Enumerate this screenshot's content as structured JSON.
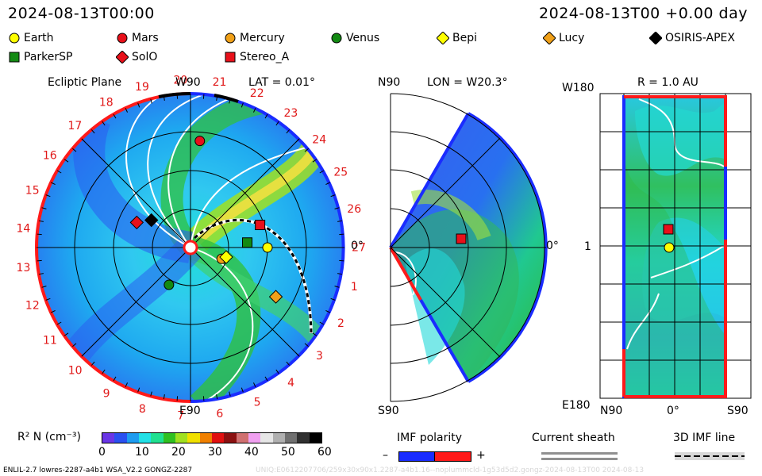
{
  "header": {
    "left_time": "2024-08-13T00:00",
    "right_time": "2024-08-13T00 +0.00 day"
  },
  "legend": [
    {
      "label": "Earth",
      "shape": "circle",
      "color": "#ffff00"
    },
    {
      "label": "Mars",
      "shape": "circle",
      "color": "#e8101a"
    },
    {
      "label": "Mercury",
      "shape": "circle",
      "color": "#f0a018"
    },
    {
      "label": "Venus",
      "shape": "circle",
      "color": "#138a13"
    },
    {
      "label": "Bepi",
      "shape": "diamond",
      "color": "#ffff00"
    },
    {
      "label": "Lucy",
      "shape": "diamond",
      "color": "#f0a018"
    },
    {
      "label": "OSIRIS-APEX",
      "shape": "diamond",
      "color": "#000000"
    },
    {
      "label": "ParkerSP",
      "shape": "square",
      "color": "#138a13"
    },
    {
      "label": "SolO",
      "shape": "diamond",
      "color": "#e8101a"
    },
    {
      "label": "Stereo_A",
      "shape": "square",
      "color": "#e8101a"
    }
  ],
  "panels": {
    "ecliptic": {
      "title": "Ecliptic Plane",
      "lat": "LAT = 0.01°",
      "top_label": "W90",
      "bottom_label": "E90",
      "right_label": "0°",
      "carrington": [
        "1",
        "2",
        "3",
        "4",
        "5",
        "6",
        "7",
        "8",
        "9",
        "10",
        "11",
        "12",
        "13",
        "14",
        "15",
        "16",
        "17",
        "18",
        "19",
        "20",
        "21",
        "22",
        "23",
        "24",
        "25",
        "26",
        "27"
      ]
    },
    "meridional": {
      "title": "LON = W20.3°",
      "top_label": "N90",
      "bottom_label": "S90",
      "right_label": "0°"
    },
    "radial": {
      "title": "R = 1.0 AU",
      "top_label": "W180",
      "bottom_label": "E180",
      "left_label": "1",
      "x_labels": [
        "N90",
        "0°",
        "S90"
      ]
    }
  },
  "colorbar": {
    "label": "R² N (cm⁻³)",
    "ticks": [
      "0",
      "10",
      "20",
      "30",
      "40",
      "50",
      "60"
    ],
    "colors": [
      "#6a36e6",
      "#2a50f0",
      "#1e9cf0",
      "#22e0e6",
      "#20e090",
      "#30c020",
      "#a0e020",
      "#f0e000",
      "#f08000",
      "#e01010",
      "#8a1010",
      "#d07070",
      "#f0a0f0",
      "#e6e6e6",
      "#b0b0b0",
      "#707070",
      "#303030",
      "#000000"
    ]
  },
  "imf_polarity": {
    "title": "IMF polarity",
    "minus": "–",
    "plus": "+"
  },
  "current_sheath": {
    "title": "Current sheath"
  },
  "imf_line": {
    "title": "3D IMF line"
  },
  "footer": {
    "left": "ENLIL-2.7 lowres-2287-a4b1 WSA_V2.2 GONGZ-2287",
    "right": "UNIQ:E0612207706/259x30x90x1.2287-a4b1.16--noplummcld-1g53d5d2.gongz-2024-08-13T00   2024-08-13"
  },
  "chart_data": [
    {
      "type": "heatmap",
      "title": "Ecliptic Plane",
      "subtitle": "LAT = 0.01°",
      "value_label": "R² N (cm⁻³)",
      "range": [
        0,
        60
      ],
      "points": [
        {
          "name": "Earth",
          "lon_deg": 0,
          "r_au": 1.0
        },
        {
          "name": "Mars",
          "lon_deg": 85,
          "r_au": 1.39
        },
        {
          "name": "Mercury",
          "lon_deg": -20,
          "r_au": 0.43
        },
        {
          "name": "Venus",
          "lon_deg": -120,
          "r_au": 0.56
        },
        {
          "name": "Bepi",
          "lon_deg": -15,
          "r_au": 0.48
        },
        {
          "name": "Lucy",
          "lon_deg": -30,
          "r_au": 1.28
        },
        {
          "name": "OSIRIS-APEX",
          "lon_deg": 145,
          "r_au": 0.62
        },
        {
          "name": "ParkerSP",
          "lon_deg": 5,
          "r_au": 0.74
        },
        {
          "name": "SolO",
          "lon_deg": 155,
          "r_au": 0.77
        },
        {
          "name": "Stereo_A",
          "lon_deg": 18,
          "r_au": 0.95
        }
      ]
    },
    {
      "type": "heatmap",
      "title": "LON = W20.3°",
      "range": [
        0,
        60
      ]
    },
    {
      "type": "heatmap",
      "title": "R = 1.0 AU",
      "range": [
        0,
        60
      ]
    }
  ]
}
